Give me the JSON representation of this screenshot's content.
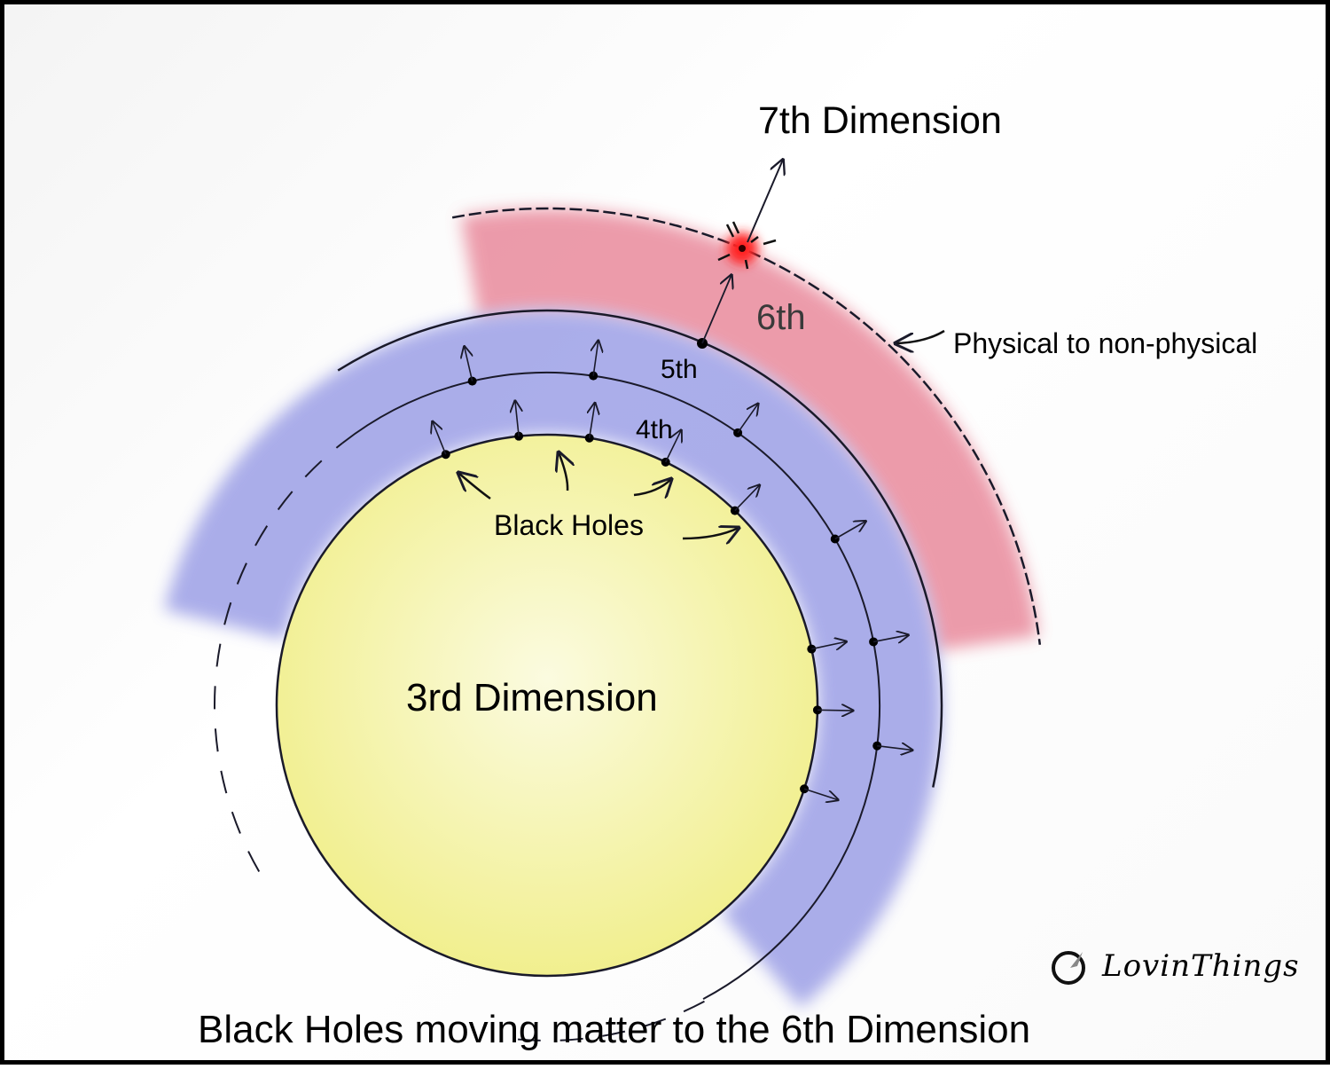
{
  "labels": {
    "seventh": "7th Dimension",
    "sixth": "6th",
    "fifth": "5th",
    "fourth": "4th",
    "black_holes": "Black Holes",
    "physical": "Physical to non-physical",
    "third": "3rd Dimension"
  },
  "caption": "Black Holes moving matter to the 6th Dimension",
  "logo": {
    "text": "LovinThings"
  },
  "colors": {
    "third_dimension": "#f6f3a8",
    "fourth_fifth_band": "#8f93e3",
    "sixth_band": "#e98a9c",
    "portal": "#ff2020",
    "line": "#1a1a2a"
  }
}
